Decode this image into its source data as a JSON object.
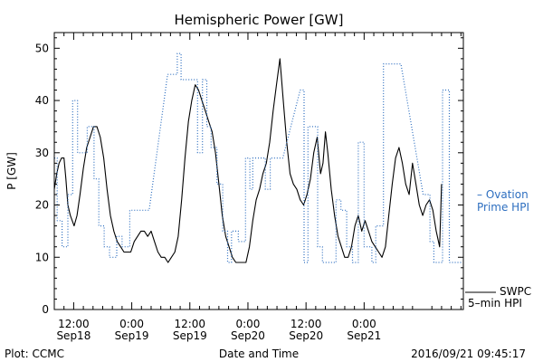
{
  "chart_data": {
    "type": "line",
    "title": "Hemispheric Power [GW]",
    "xlabel": "Date and Time",
    "ylabel": "P [GW]",
    "ylim": [
      0,
      53
    ],
    "xlim_hours": [
      -16,
      68.5
    ],
    "time_origin": "Sep18 00:00",
    "x_ticks": [
      {
        "x": -12,
        "time": "12:00",
        "date": "Sep18"
      },
      {
        "x": 0,
        "time": "0:00",
        "date": "Sep19"
      },
      {
        "x": 12,
        "time": "12:00",
        "date": "Sep19"
      },
      {
        "x": 24,
        "time": "0:00",
        "date": "Sep20"
      },
      {
        "x": 36,
        "time": "12:00",
        "date": "Sep20"
      },
      {
        "x": 48,
        "time": "0:00",
        "date": "Sep21"
      }
    ],
    "y_ticks": [
      0,
      10,
      20,
      30,
      40,
      50
    ],
    "grid": false,
    "legend_position": "right",
    "series": [
      {
        "name": "SWPC 5-min HPI",
        "color": "#000000",
        "style": "solid",
        "points": [
          [
            -16,
            23
          ],
          [
            -15.5,
            26
          ],
          [
            -15,
            28
          ],
          [
            -14.5,
            29
          ],
          [
            -14,
            29
          ],
          [
            -13.6,
            25
          ],
          [
            -13.2,
            20
          ],
          [
            -12.7,
            18
          ],
          [
            -12.3,
            17
          ],
          [
            -11.9,
            16
          ],
          [
            -11.3,
            18
          ],
          [
            -10.7,
            22
          ],
          [
            -10,
            27
          ],
          [
            -9.3,
            31
          ],
          [
            -8.6,
            33
          ],
          [
            -7.9,
            35
          ],
          [
            -7.2,
            35
          ],
          [
            -6.5,
            33
          ],
          [
            -5.8,
            29
          ],
          [
            -5.1,
            23
          ],
          [
            -4.4,
            18
          ],
          [
            -3.7,
            15
          ],
          [
            -3,
            13
          ],
          [
            -2.3,
            12
          ],
          [
            -1.6,
            11
          ],
          [
            -0.9,
            11
          ],
          [
            -0.2,
            11
          ],
          [
            0.5,
            13
          ],
          [
            1.2,
            14
          ],
          [
            1.9,
            15
          ],
          [
            2.6,
            15
          ],
          [
            3.3,
            14
          ],
          [
            4,
            15
          ],
          [
            4.7,
            13
          ],
          [
            5.4,
            11
          ],
          [
            6.1,
            10
          ],
          [
            6.8,
            10
          ],
          [
            7.5,
            9
          ],
          [
            8.2,
            10
          ],
          [
            8.9,
            11
          ],
          [
            9.6,
            14
          ],
          [
            10.3,
            21
          ],
          [
            11,
            29
          ],
          [
            11.7,
            36
          ],
          [
            12.4,
            40
          ],
          [
            13.1,
            43
          ],
          [
            13.8,
            42
          ],
          [
            14.5,
            40
          ],
          [
            15.2,
            38
          ],
          [
            15.9,
            36
          ],
          [
            16.6,
            34
          ],
          [
            17.3,
            30
          ],
          [
            18,
            24
          ],
          [
            18.7,
            18
          ],
          [
            19.4,
            14
          ],
          [
            20.1,
            12
          ],
          [
            20.8,
            10
          ],
          [
            21.5,
            9
          ],
          [
            22.2,
            9
          ],
          [
            22.9,
            9
          ],
          [
            23.6,
            9
          ],
          [
            24.3,
            12
          ],
          [
            25,
            17
          ],
          [
            25.7,
            21
          ],
          [
            26.4,
            23
          ],
          [
            27.1,
            26
          ],
          [
            27.8,
            28
          ],
          [
            28.5,
            32
          ],
          [
            29.2,
            38
          ],
          [
            29.9,
            43
          ],
          [
            30.6,
            48
          ],
          [
            31.3,
            40
          ],
          [
            32,
            32
          ],
          [
            32.7,
            26
          ],
          [
            33.4,
            24
          ],
          [
            34.1,
            23
          ],
          [
            34.8,
            21
          ],
          [
            35.5,
            20
          ],
          [
            36.2,
            22
          ],
          [
            36.9,
            25
          ],
          [
            37.6,
            30
          ],
          [
            38.3,
            33
          ],
          [
            39,
            26
          ],
          [
            39.5,
            28
          ],
          [
            40,
            34
          ],
          [
            40.5,
            30
          ],
          [
            41.2,
            23
          ],
          [
            41.9,
            18
          ],
          [
            42.6,
            14
          ],
          [
            43.3,
            12
          ],
          [
            44,
            10
          ],
          [
            44.7,
            10
          ],
          [
            45.4,
            12
          ],
          [
            46.1,
            16
          ],
          [
            46.8,
            18
          ],
          [
            47.5,
            15
          ],
          [
            48.2,
            17
          ],
          [
            48.9,
            15
          ],
          [
            49.6,
            13
          ],
          [
            50.3,
            12
          ],
          [
            51,
            11
          ],
          [
            51.7,
            10
          ],
          [
            52.4,
            12
          ],
          [
            53.1,
            18
          ],
          [
            53.8,
            24
          ],
          [
            54.5,
            29
          ],
          [
            55.2,
            31
          ],
          [
            55.9,
            28
          ],
          [
            56.6,
            24
          ],
          [
            57.3,
            22
          ],
          [
            58,
            28
          ],
          [
            58.7,
            24
          ],
          [
            59.4,
            20
          ],
          [
            60.1,
            18
          ],
          [
            60.8,
            20
          ],
          [
            61.5,
            21
          ],
          [
            62.2,
            19
          ],
          [
            62.9,
            15
          ],
          [
            63.6,
            12
          ],
          [
            64,
            24
          ]
        ]
      },
      {
        "name": "Ovation Prime HPI",
        "color": "#2e6fc0",
        "style": "dotted",
        "points": [
          [
            -16,
            29
          ],
          [
            -15.4,
            29
          ],
          [
            -15.4,
            17
          ],
          [
            -14.4,
            17
          ],
          [
            -14.4,
            12
          ],
          [
            -13.2,
            12
          ],
          [
            -13.2,
            22
          ],
          [
            -12.2,
            22
          ],
          [
            -12.2,
            40
          ],
          [
            -11.2,
            40
          ],
          [
            -11.2,
            30
          ],
          [
            -9.2,
            30
          ],
          [
            -9.2,
            35
          ],
          [
            -7.8,
            35
          ],
          [
            -7.8,
            25
          ],
          [
            -6.8,
            25
          ],
          [
            -6.8,
            16
          ],
          [
            -5.7,
            16
          ],
          [
            -5.7,
            12
          ],
          [
            -4.6,
            12
          ],
          [
            -4.6,
            10
          ],
          [
            -3.1,
            10
          ],
          [
            -3.1,
            14
          ],
          [
            -2,
            14
          ],
          [
            -2,
            12
          ],
          [
            -0.4,
            12
          ],
          [
            -0.4,
            19
          ],
          [
            3.6,
            19
          ],
          [
            7.4,
            45
          ],
          [
            9.4,
            45
          ],
          [
            9.4,
            49
          ],
          [
            10.2,
            49
          ],
          [
            10.2,
            44
          ],
          [
            13.6,
            44
          ],
          [
            13.6,
            30
          ],
          [
            14.6,
            30
          ],
          [
            14.6,
            44
          ],
          [
            15.5,
            44
          ],
          [
            15.5,
            35
          ],
          [
            16.4,
            35
          ],
          [
            16.4,
            31
          ],
          [
            17.6,
            31
          ],
          [
            17.6,
            24
          ],
          [
            18.8,
            24
          ],
          [
            18.8,
            15
          ],
          [
            19.8,
            15
          ],
          [
            19.8,
            9
          ],
          [
            20.6,
            9
          ],
          [
            20.6,
            15
          ],
          [
            22,
            15
          ],
          [
            22,
            13
          ],
          [
            23.5,
            13
          ],
          [
            23.5,
            29
          ],
          [
            24.4,
            29
          ],
          [
            24.4,
            23
          ],
          [
            25,
            23
          ],
          [
            25,
            29
          ],
          [
            27.6,
            29
          ],
          [
            27.6,
            23
          ],
          [
            28.6,
            23
          ],
          [
            28.6,
            29
          ],
          [
            31.2,
            29
          ],
          [
            34.8,
            42
          ],
          [
            35.6,
            42
          ],
          [
            35.6,
            9
          ],
          [
            36.4,
            9
          ],
          [
            36.4,
            35
          ],
          [
            38.4,
            35
          ],
          [
            38.4,
            12
          ],
          [
            39.4,
            12
          ],
          [
            39.4,
            9
          ],
          [
            42.2,
            9
          ],
          [
            42.2,
            21
          ],
          [
            43.2,
            21
          ],
          [
            43.2,
            19
          ],
          [
            44.4,
            19
          ],
          [
            44.4,
            12
          ],
          [
            45.6,
            12
          ],
          [
            45.6,
            9
          ],
          [
            46.8,
            9
          ],
          [
            46.8,
            32
          ],
          [
            48,
            32
          ],
          [
            48,
            12
          ],
          [
            49.6,
            12
          ],
          [
            49.6,
            9
          ],
          [
            50.4,
            9
          ],
          [
            50.4,
            16
          ],
          [
            52,
            16
          ],
          [
            52,
            47
          ],
          [
            55.6,
            47
          ],
          [
            60.2,
            22
          ],
          [
            61.6,
            22
          ],
          [
            61.6,
            13
          ],
          [
            62.4,
            13
          ],
          [
            62.4,
            9
          ],
          [
            64.2,
            9
          ],
          [
            64.2,
            42
          ],
          [
            65.6,
            42
          ],
          [
            65.6,
            9
          ],
          [
            68.5,
            9
          ]
        ]
      }
    ]
  },
  "legend": {
    "ovation_line1": "– Ovation",
    "ovation_line2": "Prime HPI",
    "swpc_line1": "SWPC",
    "swpc_line2": "5–min HPI"
  },
  "footer": {
    "left": "Plot: CCMC",
    "timestamp": "2016/09/21 09:45:17"
  }
}
